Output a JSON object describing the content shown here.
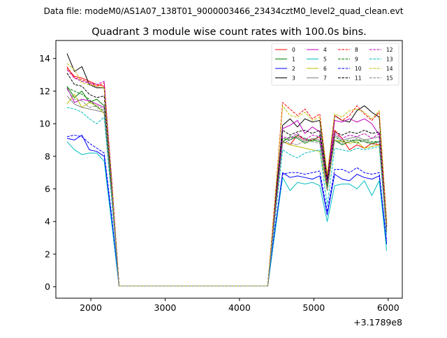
{
  "figure": {
    "suptitle": "Data file: modeM0/AS1A07_138T01_9000003466_23434cztM0_level2_quad_clean.evt"
  },
  "chart_data": {
    "type": "line",
    "title": "Quadrant 3 module wise count rates with 100.0s bins.",
    "xlabel": "",
    "ylabel": "",
    "x_offset_label": "+3.1789e8",
    "xlim": [
      1530,
      6190
    ],
    "ylim": [
      -0.7,
      15.1
    ],
    "xticks": [
      2000,
      3000,
      4000,
      5000,
      6000
    ],
    "xtick_labels": [
      "2000",
      "3000",
      "4000",
      "5000",
      "6000"
    ],
    "yticks": [
      0,
      2,
      4,
      6,
      8,
      10,
      12,
      14
    ],
    "ytick_labels": [
      "0",
      "2",
      "4",
      "6",
      "8",
      "10",
      "12",
      "14"
    ],
    "grid": false,
    "legend_position": "top-right",
    "legend_columns": 4,
    "x": [
      1680,
      1780,
      1880,
      1980,
      2080,
      2180,
      2280,
      2380,
      2480,
      2580,
      2680,
      2780,
      2880,
      2980,
      3080,
      3180,
      3280,
      3380,
      3480,
      3580,
      3680,
      3780,
      3880,
      3980,
      4080,
      4180,
      4280,
      4380,
      4480,
      4580,
      4680,
      4780,
      4880,
      4980,
      5080,
      5180,
      5280,
      5380,
      5480,
      5580,
      5680,
      5780,
      5880,
      5980
    ],
    "series": [
      {
        "name": "0",
        "color": "#ff0000",
        "dash": "solid",
        "values": [
          13.4,
          12.9,
          12.8,
          12.6,
          12.4,
          12.3,
          6.5,
          0.05,
          0.05,
          0.05,
          0.05,
          0.05,
          0.05,
          0.05,
          0.05,
          0.05,
          0.05,
          0.05,
          0.05,
          0.05,
          0.05,
          0.05,
          0.05,
          0.05,
          0.05,
          0.05,
          0.05,
          0.05,
          4.8,
          8.9,
          8.7,
          9.3,
          9.0,
          9.0,
          9.2,
          6.3,
          9.6,
          9.1,
          8.4,
          8.7,
          8.5,
          8.8,
          8.7,
          3.8
        ]
      },
      {
        "name": "1",
        "color": "#008000",
        "dash": "solid",
        "values": [
          12.3,
          11.6,
          12.0,
          11.3,
          11.5,
          11.1,
          6.0,
          0.05,
          0.05,
          0.05,
          0.05,
          0.05,
          0.05,
          0.05,
          0.05,
          0.05,
          0.05,
          0.05,
          0.05,
          0.05,
          0.05,
          0.05,
          0.05,
          0.05,
          0.05,
          0.05,
          0.05,
          0.05,
          4.6,
          8.9,
          9.2,
          9.1,
          8.8,
          9.0,
          8.9,
          6.1,
          9.0,
          8.7,
          8.9,
          9.0,
          8.9,
          8.8,
          8.9,
          3.6
        ]
      },
      {
        "name": "2",
        "color": "#0000ff",
        "dash": "solid",
        "values": [
          9.1,
          9.0,
          9.3,
          8.4,
          8.3,
          8.0,
          4.2,
          0.05,
          0.05,
          0.05,
          0.05,
          0.05,
          0.05,
          0.05,
          0.05,
          0.05,
          0.05,
          0.05,
          0.05,
          0.05,
          0.05,
          0.05,
          0.05,
          0.05,
          0.05,
          0.05,
          0.05,
          0.05,
          3.6,
          7.0,
          6.7,
          6.8,
          6.7,
          6.6,
          6.8,
          4.4,
          6.9,
          6.6,
          6.5,
          6.9,
          6.7,
          6.6,
          6.8,
          2.6
        ]
      },
      {
        "name": "3",
        "color": "#000000",
        "dash": "solid",
        "values": [
          14.3,
          13.2,
          13.5,
          12.4,
          12.2,
          12.2,
          6.6,
          0.05,
          0.05,
          0.05,
          0.05,
          0.05,
          0.05,
          0.05,
          0.05,
          0.05,
          0.05,
          0.05,
          0.05,
          0.05,
          0.05,
          0.05,
          0.05,
          0.05,
          0.05,
          0.05,
          0.05,
          0.05,
          5.1,
          9.9,
          10.3,
          9.8,
          10.3,
          10.1,
          10.2,
          6.6,
          10.5,
          10.2,
          10.1,
          10.8,
          11.1,
          10.7,
          10.4,
          3.9
        ]
      },
      {
        "name": "4",
        "color": "#bf00bf",
        "dash": "solid",
        "values": [
          12.2,
          11.3,
          11.5,
          11.4,
          11.2,
          11.0,
          5.9,
          0.05,
          0.05,
          0.05,
          0.05,
          0.05,
          0.05,
          0.05,
          0.05,
          0.05,
          0.05,
          0.05,
          0.05,
          0.05,
          0.05,
          0.05,
          0.05,
          0.05,
          0.05,
          0.05,
          0.05,
          0.05,
          4.7,
          9.7,
          9.9,
          10.2,
          9.4,
          9.8,
          9.5,
          6.3,
          10.2,
          10.1,
          10.3,
          10.1,
          10.3,
          10.0,
          9.3,
          3.7
        ]
      },
      {
        "name": "5",
        "color": "#00bfbf",
        "dash": "solid",
        "values": [
          8.9,
          8.4,
          8.1,
          8.2,
          8.2,
          7.7,
          3.9,
          0.05,
          0.05,
          0.05,
          0.05,
          0.05,
          0.05,
          0.05,
          0.05,
          0.05,
          0.05,
          0.05,
          0.05,
          0.05,
          0.05,
          0.05,
          0.05,
          0.05,
          0.05,
          0.05,
          0.05,
          0.05,
          3.4,
          6.7,
          5.9,
          6.4,
          6.3,
          6.4,
          6.2,
          4.0,
          6.2,
          6.3,
          6.3,
          6.0,
          6.5,
          5.6,
          6.5,
          2.2
        ]
      },
      {
        "name": "6",
        "color": "#bfbf00",
        "dash": "solid",
        "values": [
          11.2,
          11.8,
          11.0,
          11.3,
          11.1,
          10.6,
          5.6,
          0.05,
          0.05,
          0.05,
          0.05,
          0.05,
          0.05,
          0.05,
          0.05,
          0.05,
          0.05,
          0.05,
          0.05,
          0.05,
          0.05,
          0.05,
          0.05,
          0.05,
          0.05,
          0.05,
          0.05,
          0.05,
          4.5,
          8.9,
          8.7,
          8.6,
          8.5,
          8.4,
          8.3,
          5.9,
          9.0,
          8.9,
          8.8,
          8.9,
          8.5,
          8.6,
          8.7,
          3.3
        ]
      },
      {
        "name": "7",
        "color": "#808080",
        "dash": "solid",
        "values": [
          11.7,
          11.2,
          11.0,
          10.9,
          10.8,
          10.7,
          5.6,
          0.05,
          0.05,
          0.05,
          0.05,
          0.05,
          0.05,
          0.05,
          0.05,
          0.05,
          0.05,
          0.05,
          0.05,
          0.05,
          0.05,
          0.05,
          0.05,
          0.05,
          0.05,
          0.05,
          0.05,
          0.05,
          4.6,
          8.8,
          9.0,
          9.2,
          8.9,
          9.1,
          9.0,
          6.0,
          9.3,
          9.0,
          9.1,
          9.2,
          9.0,
          9.1,
          9.2,
          3.5
        ]
      },
      {
        "name": "8",
        "color": "#ff0000",
        "dash": "dashed",
        "values": [
          13.5,
          12.8,
          12.7,
          12.5,
          12.3,
          12.5,
          6.6,
          0.05,
          0.05,
          0.05,
          0.05,
          0.05,
          0.05,
          0.05,
          0.05,
          0.05,
          0.05,
          0.05,
          0.05,
          0.05,
          0.05,
          0.05,
          0.05,
          0.05,
          0.05,
          0.05,
          0.05,
          0.05,
          5.5,
          11.3,
          10.9,
          10.5,
          10.9,
          10.3,
          10.6,
          6.8,
          10.5,
          10.2,
          10.5,
          11.1,
          10.6,
          10.2,
          10.7,
          3.9
        ]
      },
      {
        "name": "9",
        "color": "#008000",
        "dash": "dashed",
        "values": [
          12.2,
          12.0,
          11.8,
          11.5,
          11.0,
          10.8,
          5.9,
          0.05,
          0.05,
          0.05,
          0.05,
          0.05,
          0.05,
          0.05,
          0.05,
          0.05,
          0.05,
          0.05,
          0.05,
          0.05,
          0.05,
          0.05,
          0.05,
          0.05,
          0.05,
          0.05,
          0.05,
          0.05,
          4.7,
          9.1,
          9.0,
          9.3,
          9.1,
          8.9,
          9.3,
          6.2,
          9.2,
          8.9,
          9.0,
          8.8,
          9.0,
          8.9,
          8.9,
          3.5
        ]
      },
      {
        "name": "10",
        "color": "#0000ff",
        "dash": "dashed",
        "values": [
          9.2,
          9.3,
          9.2,
          8.8,
          8.5,
          8.2,
          4.4,
          0.05,
          0.05,
          0.05,
          0.05,
          0.05,
          0.05,
          0.05,
          0.05,
          0.05,
          0.05,
          0.05,
          0.05,
          0.05,
          0.05,
          0.05,
          0.05,
          0.05,
          0.05,
          0.05,
          0.05,
          0.05,
          3.7,
          6.9,
          7.0,
          7.0,
          6.9,
          7.0,
          7.1,
          4.6,
          7.2,
          7.2,
          7.0,
          7.3,
          7.0,
          6.9,
          7.0,
          2.8
        ]
      },
      {
        "name": "11",
        "color": "#000000",
        "dash": "dashed",
        "values": [
          13.1,
          12.4,
          12.3,
          11.8,
          11.6,
          11.7,
          6.2,
          0.05,
          0.05,
          0.05,
          0.05,
          0.05,
          0.05,
          0.05,
          0.05,
          0.05,
          0.05,
          0.05,
          0.05,
          0.05,
          0.05,
          0.05,
          0.05,
          0.05,
          0.05,
          0.05,
          0.05,
          0.05,
          4.9,
          9.6,
          9.3,
          9.5,
          9.6,
          9.4,
          9.6,
          6.4,
          9.5,
          9.3,
          9.5,
          9.4,
          9.6,
          9.4,
          9.5,
          3.7
        ]
      },
      {
        "name": "12",
        "color": "#bf00bf",
        "dash": "dashed",
        "values": [
          13.3,
          12.8,
          12.6,
          12.5,
          12.4,
          12.6,
          6.6,
          0.05,
          0.05,
          0.05,
          0.05,
          0.05,
          0.05,
          0.05,
          0.05,
          0.05,
          0.05,
          0.05,
          0.05,
          0.05,
          0.05,
          0.05,
          0.05,
          0.05,
          0.05,
          0.05,
          0.05,
          0.05,
          4.8,
          9.2,
          9.1,
          9.4,
          9.0,
          9.3,
          9.2,
          6.4,
          9.4,
          9.1,
          9.3,
          9.2,
          9.4,
          9.1,
          9.4,
          3.6
        ]
      },
      {
        "name": "13",
        "color": "#00bfbf",
        "dash": "dashed",
        "values": [
          11.0,
          10.9,
          10.7,
          10.3,
          10.0,
          10.4,
          5.4,
          0.05,
          0.05,
          0.05,
          0.05,
          0.05,
          0.05,
          0.05,
          0.05,
          0.05,
          0.05,
          0.05,
          0.05,
          0.05,
          0.05,
          0.05,
          0.05,
          0.05,
          0.05,
          0.05,
          0.05,
          0.05,
          4.2,
          8.4,
          8.1,
          7.9,
          8.2,
          8.3,
          8.4,
          5.0,
          8.5,
          8.4,
          8.3,
          8.5,
          8.4,
          8.5,
          8.6,
          3.2
        ]
      },
      {
        "name": "14",
        "color": "#bfbf00",
        "dash": "dashed",
        "values": [
          13.7,
          13.3,
          12.5,
          12.4,
          12.3,
          12.2,
          6.5,
          0.05,
          0.05,
          0.05,
          0.05,
          0.05,
          0.05,
          0.05,
          0.05,
          0.05,
          0.05,
          0.05,
          0.05,
          0.05,
          0.05,
          0.05,
          0.05,
          0.05,
          0.05,
          0.05,
          0.05,
          0.05,
          5.4,
          11.1,
          10.5,
          10.4,
          10.7,
          10.2,
          10.4,
          6.9,
          10.6,
          10.4,
          10.8,
          10.9,
          10.7,
          10.3,
          10.8,
          3.8
        ]
      },
      {
        "name": "15",
        "color": "#808080",
        "dash": "dashed",
        "values": [
          12.1,
          11.5,
          11.4,
          11.0,
          11.1,
          10.9,
          5.8,
          0.05,
          0.05,
          0.05,
          0.05,
          0.05,
          0.05,
          0.05,
          0.05,
          0.05,
          0.05,
          0.05,
          0.05,
          0.05,
          0.05,
          0.05,
          0.05,
          0.05,
          0.05,
          0.05,
          0.05,
          0.05,
          4.6,
          8.9,
          8.8,
          8.7,
          9.0,
          8.9,
          8.8,
          5.9,
          9.0,
          8.8,
          8.9,
          9.1,
          8.9,
          8.7,
          8.9,
          3.4
        ]
      }
    ]
  }
}
